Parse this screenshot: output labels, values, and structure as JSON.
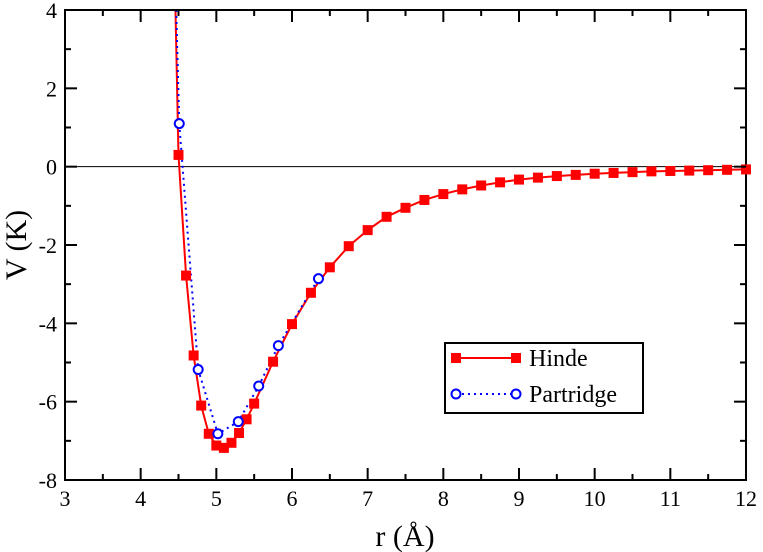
{
  "chart_data": {
    "type": "line",
    "xlabel": "r (Å)",
    "ylabel": "V (K)",
    "xlim": [
      3,
      12
    ],
    "ylim": [
      -8,
      4
    ],
    "xticks": [
      3,
      4,
      5,
      6,
      7,
      8,
      9,
      10,
      11,
      12
    ],
    "yticks": [
      -8,
      -6,
      -4,
      -2,
      0,
      2,
      4
    ],
    "x_minor_step": 0.5,
    "y_minor_step": 1,
    "zero_line": true,
    "legend_position": "lower-right",
    "series": [
      {
        "name": "Hinde",
        "color": "#ff0000",
        "line_style": "solid",
        "marker": "filled-square",
        "steep_start": [
          4.46,
          4.0
        ],
        "x": [
          4.5,
          4.6,
          4.7,
          4.8,
          4.9,
          5.0,
          5.1,
          5.2,
          5.3,
          5.4,
          5.5,
          5.75,
          6.0,
          6.25,
          6.5,
          6.75,
          7.0,
          7.25,
          7.5,
          7.75,
          8.0,
          8.25,
          8.5,
          8.75,
          9.0,
          9.25,
          9.5,
          9.75,
          10.0,
          10.25,
          10.5,
          10.75,
          11.0,
          11.25,
          11.5,
          11.75,
          12.0
        ],
        "y": [
          0.3,
          -2.78,
          -4.82,
          -6.1,
          -6.82,
          -7.12,
          -7.18,
          -7.05,
          -6.8,
          -6.45,
          -6.05,
          -4.98,
          -4.02,
          -3.22,
          -2.57,
          -2.03,
          -1.62,
          -1.28,
          -1.05,
          -0.85,
          -0.7,
          -0.58,
          -0.48,
          -0.4,
          -0.33,
          -0.28,
          -0.24,
          -0.21,
          -0.18,
          -0.16,
          -0.14,
          -0.12,
          -0.11,
          -0.1,
          -0.09,
          -0.08,
          -0.07
        ]
      },
      {
        "name": "Partridge",
        "color": "#0000ff",
        "line_style": "dotted",
        "marker": "open-circle",
        "steep_start": [
          4.47,
          4.0
        ],
        "x": [
          4.51,
          4.76,
          5.02,
          5.29,
          5.56,
          5.82,
          6.35
        ],
        "y": [
          1.1,
          -5.18,
          -6.82,
          -6.51,
          -5.6,
          -4.57,
          -2.86
        ]
      }
    ]
  }
}
